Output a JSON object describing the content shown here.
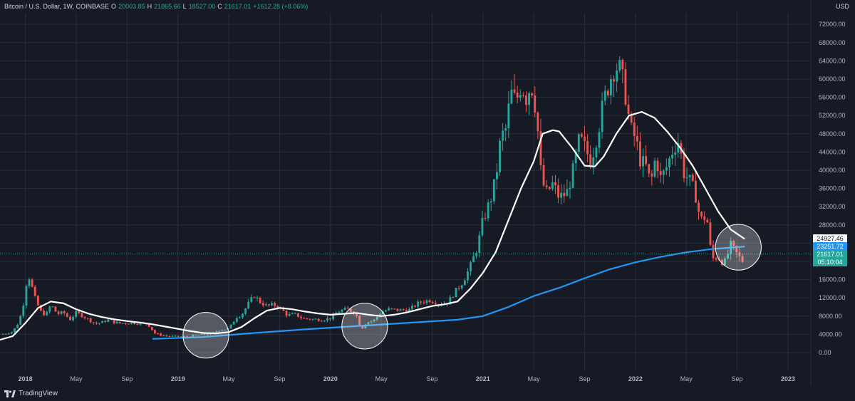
{
  "header": {
    "symbol": "Bitcoin / U.S. Dollar, 1W, COINBASE",
    "open_label": "O",
    "open": "20003.85",
    "high_label": "H",
    "high": "21865.66",
    "low_label": "L",
    "low": "18527.00",
    "close_label": "C",
    "close": "21617.01",
    "change": "+1612.28 (+8.06%)"
  },
  "currency": "USD",
  "price_tags": {
    "sma_white": "24927.46",
    "sma_blue": "23251.72",
    "last_price": "21617.01",
    "countdown": "05:10:04"
  },
  "branding": {
    "name": "TradingView"
  },
  "colors": {
    "background": "#161a25",
    "up": "#26a69a",
    "down": "#ef5350",
    "sma_short": "#ffffff",
    "sma_long": "#2196f3",
    "grid": "#2a2e39"
  },
  "chart_data": {
    "type": "candlestick",
    "title": "Bitcoin / U.S. Dollar, 1W, COINBASE",
    "ylabel": "USD",
    "ylim": [
      -2000,
      74000
    ],
    "y_ticks": [
      "72000.00",
      "68000.00",
      "64000.00",
      "60000.00",
      "56000.00",
      "52000.00",
      "48000.00",
      "44000.00",
      "40000.00",
      "36000.00",
      "32000.00",
      "28000.00",
      "24000.00",
      "20000.00",
      "16000.00",
      "12000.00",
      "8000.00",
      "4000.00",
      "0.00"
    ],
    "x_ticks": [
      "2018",
      "May",
      "Sep",
      "2019",
      "May",
      "Sep",
      "2020",
      "May",
      "Sep",
      "2021",
      "May",
      "Sep",
      "2022",
      "May",
      "Sep",
      "2023"
    ],
    "x_tick_months": [
      0,
      4,
      8,
      12,
      16,
      20,
      24,
      28,
      32,
      36,
      40,
      44,
      48,
      52,
      56,
      60
    ],
    "x_range_months": [
      -2.0,
      61.8
    ],
    "price_path": [
      [
        -2.0,
        4000
      ],
      [
        -1.5,
        4200
      ],
      [
        -1.0,
        4600
      ],
      [
        -0.5,
        6800
      ],
      [
        -0.2,
        10000
      ],
      [
        0,
        13800
      ],
      [
        0.2,
        17500
      ],
      [
        0.5,
        14500
      ],
      [
        0.8,
        11500
      ],
      [
        1.2,
        9000
      ],
      [
        1.6,
        8200
      ],
      [
        2.0,
        10500
      ],
      [
        2.5,
        8500
      ],
      [
        3.0,
        8800
      ],
      [
        3.5,
        7200
      ],
      [
        4.0,
        8800
      ],
      [
        4.4,
        8200
      ],
      [
        5.0,
        7200
      ],
      [
        5.5,
        6300
      ],
      [
        6.0,
        6600
      ],
      [
        6.5,
        7200
      ],
      [
        7.0,
        6600
      ],
      [
        7.5,
        6400
      ],
      [
        8.0,
        6500
      ],
      [
        8.5,
        6500
      ],
      [
        9.0,
        6400
      ],
      [
        9.6,
        6300
      ],
      [
        10.2,
        4200
      ],
      [
        10.7,
        3800
      ],
      [
        11.2,
        3600
      ],
      [
        12.0,
        3500
      ],
      [
        12.8,
        3500
      ],
      [
        13.4,
        3800
      ],
      [
        14.0,
        3900
      ],
      [
        14.6,
        4100
      ],
      [
        15.2,
        4900
      ],
      [
        16.0,
        5200
      ],
      [
        16.6,
        7800
      ],
      [
        17.0,
        8200
      ],
      [
        17.6,
        11000
      ],
      [
        18.0,
        12500
      ],
      [
        18.5,
        11000
      ],
      [
        19.0,
        10200
      ],
      [
        19.5,
        10500
      ],
      [
        20.0,
        9900
      ],
      [
        20.6,
        8200
      ],
      [
        21.2,
        8400
      ],
      [
        21.8,
        7500
      ],
      [
        22.3,
        7400
      ],
      [
        22.8,
        7300
      ],
      [
        23.4,
        7200
      ],
      [
        24.0,
        7500
      ],
      [
        24.6,
        9000
      ],
      [
        25.3,
        9600
      ],
      [
        26.0,
        8600
      ],
      [
        26.4,
        5000
      ],
      [
        26.8,
        6600
      ],
      [
        27.4,
        7000
      ],
      [
        28.0,
        8900
      ],
      [
        28.6,
        9500
      ],
      [
        29.4,
        9300
      ],
      [
        30.2,
        9400
      ],
      [
        31.0,
        11000
      ],
      [
        31.8,
        11500
      ],
      [
        32.6,
        10700
      ],
      [
        33.2,
        10900
      ],
      [
        33.8,
        13300
      ],
      [
        34.4,
        15500
      ],
      [
        35.0,
        18800
      ],
      [
        35.6,
        23500
      ],
      [
        36.0,
        29000
      ],
      [
        36.6,
        33500
      ],
      [
        37.0,
        38000
      ],
      [
        37.4,
        47000
      ],
      [
        37.8,
        49000
      ],
      [
        38.2,
        57000
      ],
      [
        38.6,
        55000
      ],
      [
        39.0,
        59000
      ],
      [
        39.4,
        56000
      ],
      [
        39.8,
        59000
      ],
      [
        40.2,
        53000
      ],
      [
        40.6,
        38000
      ],
      [
        41.0,
        35000
      ],
      [
        41.5,
        37000
      ],
      [
        42.0,
        34000
      ],
      [
        42.6,
        35000
      ],
      [
        43.1,
        40000
      ],
      [
        43.6,
        47000
      ],
      [
        44.0,
        45000
      ],
      [
        44.5,
        42000
      ],
      [
        45.0,
        48000
      ],
      [
        45.5,
        55000
      ],
      [
        46.0,
        60000
      ],
      [
        46.4,
        63000
      ],
      [
        46.8,
        62000
      ],
      [
        47.2,
        57000
      ],
      [
        47.6,
        49000
      ],
      [
        48.0,
        47000
      ],
      [
        48.4,
        42000
      ],
      [
        48.8,
        41000
      ],
      [
        49.2,
        37000
      ],
      [
        49.6,
        43000
      ],
      [
        50.0,
        38000
      ],
      [
        50.5,
        41000
      ],
      [
        51.0,
        45000
      ],
      [
        51.4,
        46500
      ],
      [
        51.8,
        39500
      ],
      [
        52.2,
        38000
      ],
      [
        52.7,
        35000
      ],
      [
        53.1,
        29000
      ],
      [
        53.6,
        30000
      ],
      [
        54.0,
        20500
      ],
      [
        54.5,
        21000
      ],
      [
        55.0,
        19500
      ],
      [
        55.5,
        23500
      ],
      [
        56.0,
        21500
      ],
      [
        56.4,
        20000
      ],
      [
        56.6,
        21617
      ]
    ],
    "series": [
      {
        "name": "SMA short (white)",
        "points": [
          [
            -2.0,
            2800
          ],
          [
            -1,
            3600
          ],
          [
            0,
            6500
          ],
          [
            1,
            9800
          ],
          [
            2,
            11200
          ],
          [
            3,
            10800
          ],
          [
            4,
            9500
          ],
          [
            5,
            8500
          ],
          [
            6,
            7800
          ],
          [
            7,
            7300
          ],
          [
            8,
            6900
          ],
          [
            9,
            6600
          ],
          [
            10,
            6200
          ],
          [
            11,
            5700
          ],
          [
            12,
            5200
          ],
          [
            13,
            4700
          ],
          [
            14,
            4300
          ],
          [
            15,
            4200
          ],
          [
            16,
            4500
          ],
          [
            17,
            5600
          ],
          [
            18,
            7500
          ],
          [
            19,
            9200
          ],
          [
            20,
            9800
          ],
          [
            21,
            9500
          ],
          [
            22,
            9000
          ],
          [
            23,
            8600
          ],
          [
            24,
            8300
          ],
          [
            25,
            8500
          ],
          [
            26,
            8700
          ],
          [
            27,
            8300
          ],
          [
            28,
            8000
          ],
          [
            29,
            8300
          ],
          [
            30,
            8800
          ],
          [
            31,
            9500
          ],
          [
            32,
            10200
          ],
          [
            33,
            10600
          ],
          [
            34,
            11200
          ],
          [
            35,
            14000
          ],
          [
            36,
            17500
          ],
          [
            37,
            22000
          ],
          [
            38,
            29000
          ],
          [
            39,
            36000
          ],
          [
            40,
            42000
          ],
          [
            40.7,
            48000
          ],
          [
            41.5,
            48800
          ],
          [
            42,
            48500
          ],
          [
            43,
            45000
          ],
          [
            44,
            41000
          ],
          [
            44.8,
            40800
          ],
          [
            45.5,
            43000
          ],
          [
            46.5,
            48000
          ],
          [
            47.5,
            52000
          ],
          [
            48.5,
            52800
          ],
          [
            49.5,
            51500
          ],
          [
            50.5,
            48500
          ],
          [
            51.5,
            45000
          ],
          [
            52.5,
            41000
          ],
          [
            53.5,
            36000
          ],
          [
            54.5,
            31000
          ],
          [
            55.5,
            27000
          ],
          [
            56.6,
            24927.46
          ]
        ]
      },
      {
        "name": "SMA long (blue)",
        "points": [
          [
            10,
            3000
          ],
          [
            14,
            3400
          ],
          [
            18,
            4300
          ],
          [
            22,
            5100
          ],
          [
            26,
            5800
          ],
          [
            30,
            6500
          ],
          [
            34,
            7200
          ],
          [
            36,
            8000
          ],
          [
            38,
            10000
          ],
          [
            40,
            12400
          ],
          [
            42,
            14200
          ],
          [
            44,
            16300
          ],
          [
            46,
            18300
          ],
          [
            48,
            19800
          ],
          [
            50,
            21000
          ],
          [
            52,
            22000
          ],
          [
            54,
            22700
          ],
          [
            56.6,
            23251.72
          ]
        ]
      }
    ],
    "annotations": [
      {
        "type": "circle",
        "x": 14.2,
        "y": 3800,
        "radius_months": 1.8
      },
      {
        "type": "circle",
        "x": 26.7,
        "y": 5800,
        "radius_months": 1.8
      },
      {
        "type": "circle",
        "x": 56.1,
        "y": 23100,
        "radius_months": 1.8
      }
    ]
  }
}
